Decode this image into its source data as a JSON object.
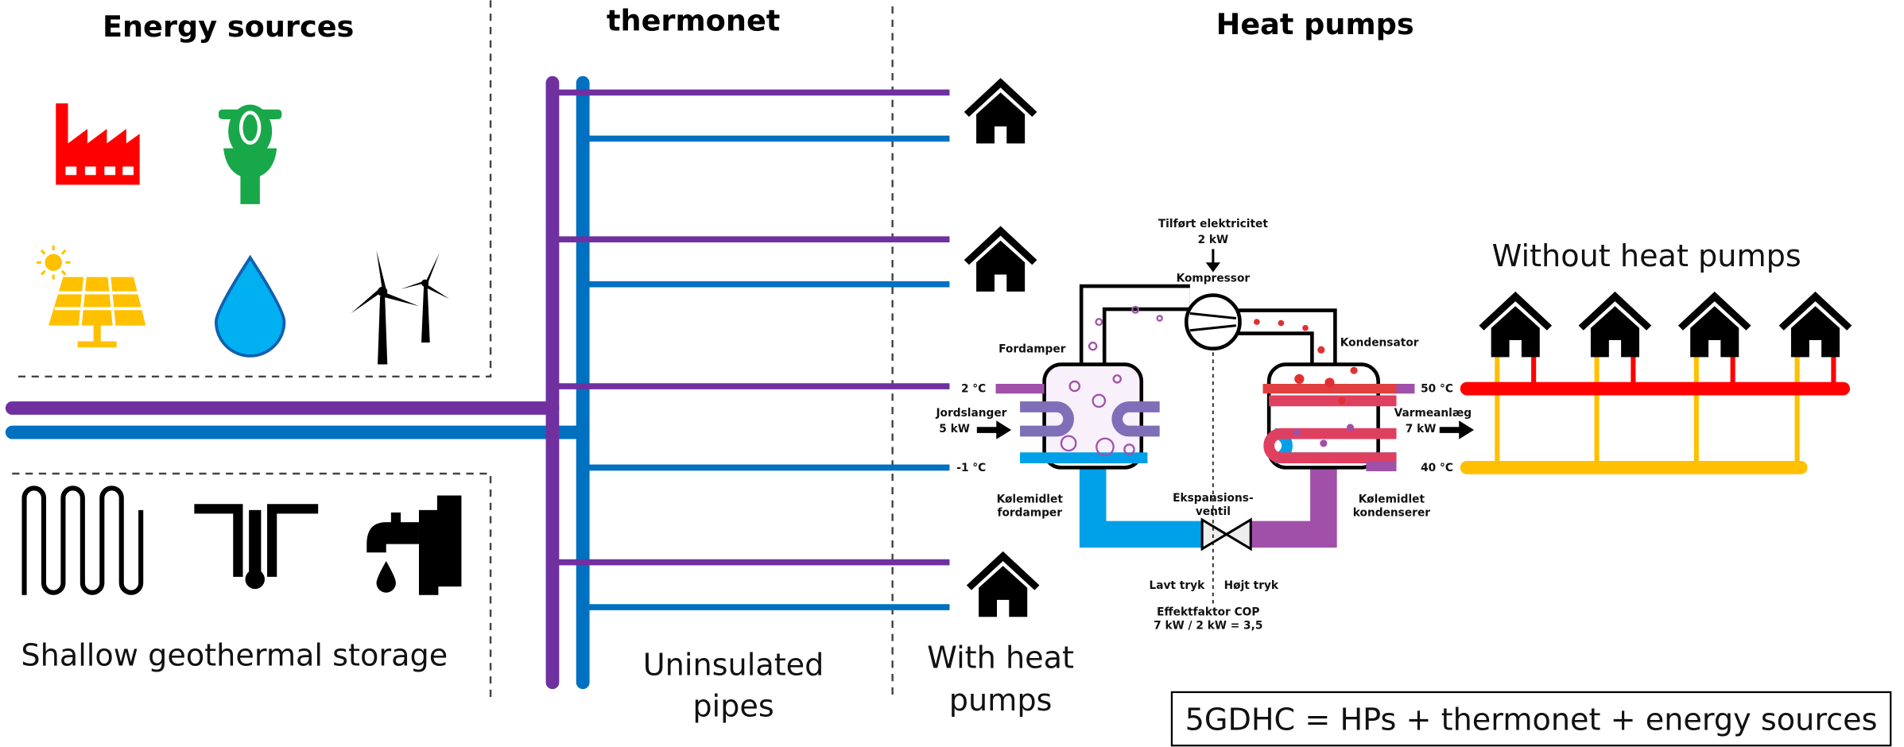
{
  "sections": {
    "energy_sources": "Energy sources",
    "thermonet": "thermonet",
    "heat_pumps": "Heat pumps"
  },
  "captions": {
    "storage": "Shallow geothermal storage",
    "pipes": [
      "Uninsulated",
      "pipes"
    ],
    "with_hp": [
      "With heat",
      "pumps"
    ],
    "without_hp": "Without heat pumps",
    "formula": "5GDHC = HPs + thermonet + energy sources"
  },
  "heat_pump_diagram": {
    "electricity": "Tilført elektricitet",
    "electricity_power": "2 kW",
    "compressor": "Kompressor",
    "evaporator": "Fordamper",
    "condenser": "Kondensator",
    "temp_in_cold": "2 °C",
    "temp_out_cold": "-1 °C",
    "temp_out_hot": "50 °C",
    "temp_in_hot": "40 °C",
    "ground_loops": "Jordslanger",
    "ground_power": "5 kW",
    "heating_system": "Varmeanlæg",
    "heating_power": "7 kW",
    "refrigerant_evaporates": [
      "Kølemidlet",
      "fordamper"
    ],
    "expansion_valve": [
      "Ekspansions-",
      "ventil"
    ],
    "refrigerant_condenses": [
      "Kølemidlet",
      "kondenserer"
    ],
    "low_pressure": "Lavt tryk",
    "high_pressure": "Højt tryk",
    "cop_title": "Effektfaktor COP",
    "cop_formula": "7 kW / 2 kW = 3,5"
  }
}
